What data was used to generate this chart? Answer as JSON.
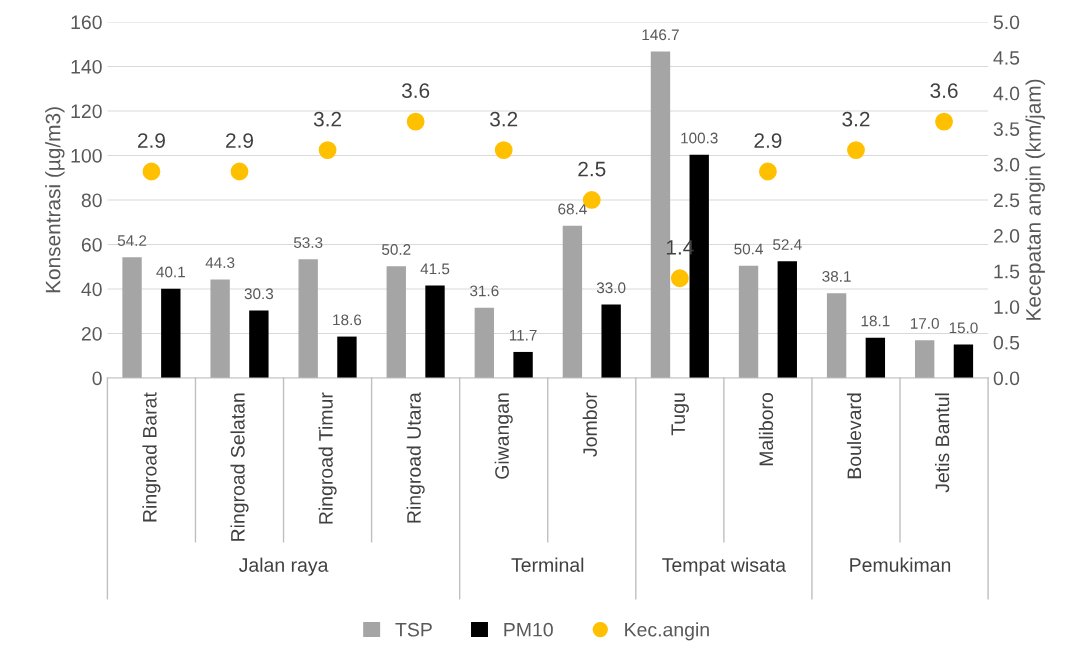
{
  "chart_data": {
    "type": "bar",
    "ylabel": "Konsentrasi (µg/m3)",
    "y2label": "Kecepatan angin (km/jam)",
    "categories": [
      "Ringroad Barat",
      "Ringroad Selatan",
      "Ringroad Timur",
      "Ringroad Utara",
      "Giwangan",
      "Jombor",
      "Tugu",
      "Maliboro",
      "Boulevard",
      "Jetis Bantul"
    ],
    "series": [
      {
        "name": "TSP",
        "color": "#a5a5a5",
        "values": [
          54.2,
          44.3,
          53.3,
          50.2,
          31.6,
          68.4,
          146.7,
          50.4,
          38.1,
          17.0
        ],
        "value_labels": [
          "54.2",
          "44.3",
          "53.3",
          "50.2",
          "31.6",
          "68.4",
          "146.7",
          "50.4",
          "38.1",
          "17.0"
        ]
      },
      {
        "name": "PM10",
        "color": "#000000",
        "values": [
          40.1,
          30.3,
          18.6,
          41.5,
          11.7,
          33.0,
          100.3,
          52.4,
          18.1,
          15.0
        ],
        "value_labels": [
          "40.1",
          "30.3",
          "18.6",
          "41.5",
          "11.7",
          "33.0",
          "100.3",
          "52.4",
          "18.1",
          "15.0"
        ]
      },
      {
        "name": "Kec.angin",
        "type": "scatter",
        "axis": "y2",
        "color": "#ffc000",
        "values": [
          2.9,
          2.9,
          3.2,
          3.6,
          3.2,
          2.5,
          1.4,
          2.9,
          3.2,
          3.6
        ],
        "value_labels": [
          "2.9",
          "2.9",
          "3.2",
          "3.6",
          "3.2",
          "2.5",
          "1.4",
          "2.9",
          "3.2",
          "3.6"
        ]
      }
    ],
    "annotations": [
      "Jalan raya",
      "Terminal",
      "Tempat wisata",
      "Pemukiman"
    ],
    "ylim": [
      0,
      160
    ],
    "yticks": [
      0,
      20,
      40,
      60,
      80,
      100,
      120,
      140,
      160
    ],
    "y2lim": [
      0,
      5
    ],
    "y2ticks": [
      {
        "value": 0,
        "label": "0.0"
      },
      {
        "value": 0.5,
        "label": "0.5"
      },
      {
        "value": 1,
        "label": "1.0"
      },
      {
        "value": 1.5,
        "label": "1.5"
      },
      {
        "value": 2,
        "label": "2.0"
      },
      {
        "value": 2.5,
        "label": "2.5"
      },
      {
        "value": 3,
        "label": "3.0"
      },
      {
        "value": 3.5,
        "label": "3.5"
      },
      {
        "value": 4,
        "label": "4.0"
      },
      {
        "value": 4.5,
        "label": "4.5"
      },
      {
        "value": 5,
        "label": "5.0"
      }
    ],
    "grid": "y",
    "legend": "bottom",
    "marker": "circle"
  }
}
